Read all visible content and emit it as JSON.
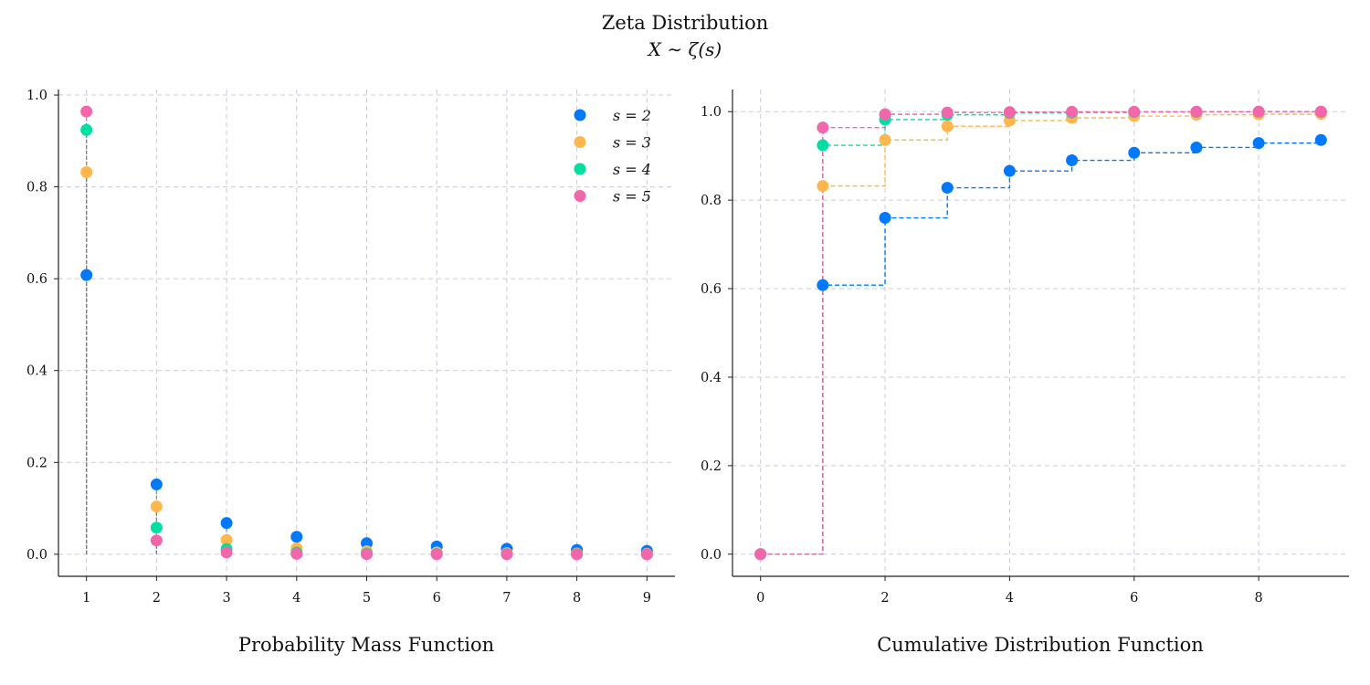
{
  "figure": {
    "title": "Zeta Distribution",
    "subtitle": "X ∼ ζ(s)"
  },
  "colors": {
    "s2": "#0079FF",
    "s3": "#FFB74D",
    "s4": "#00DFA2",
    "s5": "#F266AB",
    "stem": "#808080",
    "grid": "#C8CCD8",
    "axis": "#222222"
  },
  "chart_data": [
    {
      "type": "scatter",
      "panel": "pmf",
      "xlabel": "Probability Mass Function",
      "ylabel": "",
      "x": [
        1,
        2,
        3,
        4,
        5,
        6,
        7,
        8,
        9
      ],
      "xlim": [
        0.6,
        9.4
      ],
      "ylim": [
        -0.048,
        1.012
      ],
      "xticks": [
        1,
        2,
        3,
        4,
        5,
        6,
        7,
        8,
        9
      ],
      "yticks": [
        0.0,
        0.2,
        0.4,
        0.6,
        0.8,
        1.0
      ],
      "grid": true,
      "legend": "top-right",
      "stems": "grey dashed stem lines from 0 to each value",
      "series": [
        {
          "name": "s = 2",
          "color": "#0079FF",
          "values": [
            0.608,
            0.152,
            0.068,
            0.038,
            0.024,
            0.017,
            0.012,
            0.0095,
            0.0075
          ]
        },
        {
          "name": "s = 3",
          "color": "#FFB74D",
          "values": [
            0.832,
            0.104,
            0.031,
            0.013,
            0.0067,
            0.0039,
            0.0024,
            0.0016,
            0.0011
          ]
        },
        {
          "name": "s = 4",
          "color": "#00DFA2",
          "values": [
            0.924,
            0.058,
            0.0114,
            0.0036,
            0.0015,
            0.0007,
            0.0004,
            0.0002,
            0.0001
          ]
        },
        {
          "name": "s = 5",
          "color": "#F266AB",
          "values": [
            0.964,
            0.03,
            0.004,
            0.0009,
            0.0003,
            0.0001,
            0.0001,
            0.0,
            0.0
          ]
        }
      ]
    },
    {
      "type": "line",
      "panel": "cdf",
      "xlabel": "Cumulative Distribution Function",
      "ylabel": "",
      "x": [
        0,
        1,
        2,
        3,
        4,
        5,
        6,
        7,
        8,
        9
      ],
      "xlim": [
        -0.45,
        9.45
      ],
      "ylim": [
        -0.05,
        1.05
      ],
      "xticks": [
        0,
        2,
        4,
        6,
        8
      ],
      "yticks": [
        0.0,
        0.2,
        0.4,
        0.6,
        0.8,
        1.0
      ],
      "grid": true,
      "style": "dashed step-post lines with point markers",
      "series": [
        {
          "name": "s = 2",
          "color": "#0079FF",
          "values": [
            0.0,
            0.608,
            0.76,
            0.828,
            0.866,
            0.89,
            0.907,
            0.919,
            0.929,
            0.936
          ]
        },
        {
          "name": "s = 3",
          "color": "#FFB74D",
          "values": [
            0.0,
            0.832,
            0.936,
            0.967,
            0.98,
            0.986,
            0.99,
            0.993,
            0.994,
            0.995
          ]
        },
        {
          "name": "s = 4",
          "color": "#00DFA2",
          "values": [
            0.0,
            0.924,
            0.982,
            0.993,
            0.997,
            0.998,
            0.999,
            0.9995,
            0.9997,
            0.9998
          ]
        },
        {
          "name": "s = 5",
          "color": "#F266AB",
          "values": [
            0.0,
            0.964,
            0.994,
            0.998,
            0.999,
            0.9996,
            0.9998,
            0.9999,
            1.0,
            1.0
          ]
        }
      ]
    }
  ]
}
